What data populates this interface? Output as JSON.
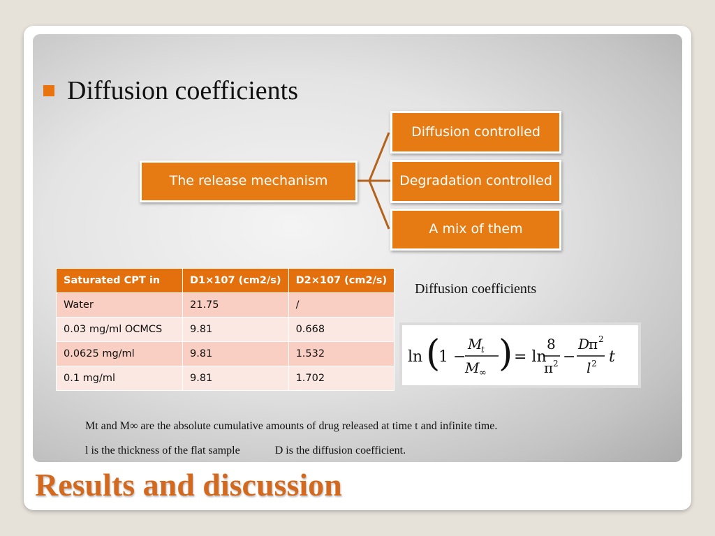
{
  "heading": "Diffusion coefficients",
  "diagram": {
    "root": "The release mechanism",
    "branches": [
      "Diffusion controlled",
      "Degradation controlled",
      "A mix of them"
    ]
  },
  "table": {
    "headers": [
      "Saturated CPT in",
      "D1×107 (cm2/s)",
      "D2×107 (cm2/s)"
    ],
    "rows": [
      [
        "Water",
        "21.75",
        "/"
      ],
      [
        "0.03 mg/ml OCMCS",
        "9.81",
        "0.668"
      ],
      [
        "0.0625 mg/ml",
        "9.81",
        "1.532"
      ],
      [
        "0.1 mg/ml",
        "9.81",
        "1.702"
      ]
    ]
  },
  "equation": {
    "caption": "Diffusion coefficients",
    "formula": "ln(1 − Mt/M∞) = ln 8/π² − Dπ²/l² t"
  },
  "notes": {
    "line1": "Mt and M∞ are the absolute cumulative amounts of drug released at time t and infinite time.",
    "line2a": "l is the thickness of the flat sample",
    "line2b": "D is the diffusion coefficient."
  },
  "slide_title": "Results and discussion",
  "colors": {
    "accent": "#e67a13",
    "title": "#d2691e",
    "row_odd": "#f8cfc2",
    "row_even": "#fbe8e2"
  }
}
